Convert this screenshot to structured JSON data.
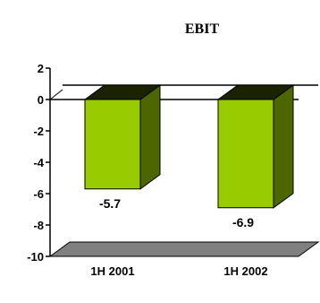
{
  "chart_data": {
    "type": "bar",
    "title": "EBIT",
    "categories": [
      "1H 2001",
      "1H 2002"
    ],
    "values": [
      -5.7,
      -6.9
    ],
    "data_labels": [
      "-5.7",
      "-6.9"
    ],
    "ylim": [
      -10,
      2
    ],
    "yticks": [
      2,
      0,
      -2,
      -4,
      -6,
      -8,
      -10
    ],
    "ytick_labels": [
      "2",
      "0",
      "-2",
      "-4",
      "-6",
      "-8",
      "-10"
    ],
    "xlabel": "",
    "ylabel": "",
    "grid": false,
    "legend": "none",
    "colors": {
      "bar_front": "#99cc00",
      "bar_side": "#4d6600",
      "bar_top": "#1a2200",
      "floor": "#808080"
    }
  }
}
